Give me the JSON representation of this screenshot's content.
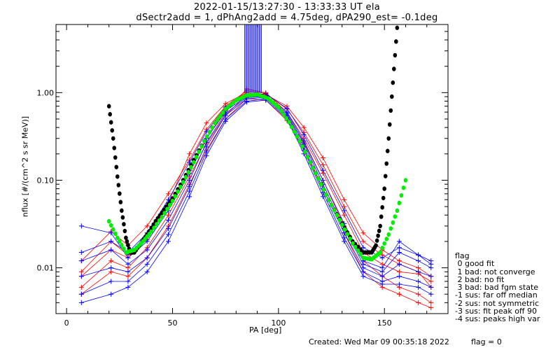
{
  "title_line1": "2022-01-15/13:27:30 - 13:33:33 UT ela",
  "title_line2": "dSectr2add = 1, dPhAng2add = 4.75deg, dPA290_est=  -0.1deg",
  "footer": {
    "created": "Created: Wed Mar 09 00:35:18 2022",
    "flag_value": "flag = 0"
  },
  "legend": {
    "items": [
      "flag",
      " 0 good fit",
      " 1 bad: not converge",
      " 2 bad: no fit",
      " 3 bad: bad fgm state",
      "-1 sus: far off median",
      "-2 sus: not symmetric",
      "-3 sus: fit peak off 90",
      "-4 sus: peaks high var"
    ]
  },
  "colors": {
    "series_red": "#ff0000",
    "series_blue": "#0000ff",
    "fit_green": "#00ee00",
    "fit_black": "#000000"
  },
  "chart_data": {
    "type": "line",
    "xlabel": "PA [deg]",
    "ylabel": "nflux [#/(cm^2 s sr MeV)]",
    "xlim": [
      -5,
      180
    ],
    "ylim": [
      0.003,
      6.0
    ],
    "yscale": "log",
    "x_ticks": [
      0,
      50,
      100,
      150
    ],
    "y_ticks": [
      0.01,
      0.1,
      1.0
    ],
    "y_tick_labels": [
      "0.01",
      "0.10",
      "1.00"
    ],
    "x": [
      7,
      21,
      29,
      38,
      48,
      58,
      66,
      75,
      85,
      94,
      104,
      112,
      121,
      131,
      140,
      149,
      157,
      166,
      172
    ],
    "series": [
      {
        "color": "red",
        "values": [
          0.009,
          0.02,
          0.014,
          0.023,
          0.05,
          0.13,
          0.3,
          0.6,
          1.1,
          1.0,
          0.6,
          0.3,
          0.12,
          0.04,
          0.015,
          0.011,
          0.009,
          0.0085,
          0.007
        ]
      },
      {
        "color": "red",
        "values": [
          0.006,
          0.012,
          0.01,
          0.017,
          0.04,
          0.11,
          0.26,
          0.55,
          0.95,
          0.92,
          0.55,
          0.27,
          0.1,
          0.03,
          0.012,
          0.008,
          0.006,
          0.005,
          0.004
        ]
      },
      {
        "color": "red",
        "values": [
          0.012,
          0.026,
          0.018,
          0.03,
          0.07,
          0.17,
          0.38,
          0.7,
          1.05,
          0.98,
          0.65,
          0.35,
          0.15,
          0.05,
          0.02,
          0.014,
          0.011,
          0.009,
          0.006
        ]
      },
      {
        "color": "red",
        "values": [
          0.005,
          0.009,
          0.008,
          0.013,
          0.03,
          0.09,
          0.22,
          0.5,
          0.85,
          0.82,
          0.48,
          0.22,
          0.08,
          0.025,
          0.009,
          0.006,
          0.005,
          0.004,
          0.0035
        ]
      },
      {
        "color": "red",
        "values": [
          0.008,
          0.016,
          0.013,
          0.021,
          0.055,
          0.2,
          0.45,
          0.75,
          1.0,
          0.95,
          0.7,
          0.4,
          0.18,
          0.06,
          0.025,
          0.016,
          0.012,
          0.01,
          0.008
        ]
      },
      {
        "color": "blue",
        "values": [
          0.03,
          0.025,
          0.013,
          0.02,
          0.045,
          0.12,
          0.3,
          0.62,
          0.9,
          0.92,
          0.6,
          0.28,
          0.1,
          0.032,
          0.012,
          0.01,
          0.02,
          0.014,
          0.012
        ]
      },
      {
        "color": "blue",
        "values": [
          0.012,
          0.016,
          0.011,
          0.016,
          0.035,
          0.1,
          0.27,
          0.58,
          0.88,
          0.9,
          0.58,
          0.26,
          0.09,
          0.028,
          0.011,
          0.009,
          0.015,
          0.012,
          0.01
        ]
      },
      {
        "color": "blue",
        "values": [
          0.008,
          0.01,
          0.009,
          0.013,
          0.028,
          0.085,
          0.24,
          0.55,
          0.85,
          0.88,
          0.55,
          0.24,
          0.08,
          0.025,
          0.01,
          0.008,
          0.011,
          0.009,
          0.008
        ]
      },
      {
        "color": "blue",
        "values": [
          0.005,
          0.007,
          0.007,
          0.011,
          0.024,
          0.075,
          0.21,
          0.5,
          0.8,
          0.85,
          0.52,
          0.22,
          0.072,
          0.022,
          0.009,
          0.007,
          0.008,
          0.007,
          0.006
        ]
      },
      {
        "color": "blue",
        "values": [
          0.004,
          0.005,
          0.006,
          0.009,
          0.02,
          0.065,
          0.19,
          0.47,
          0.78,
          0.82,
          0.5,
          0.2,
          0.065,
          0.02,
          0.008,
          0.0065,
          0.0065,
          0.006,
          0.005
        ]
      },
      {
        "color": "blue",
        "values": [
          0.015,
          0.02,
          0.015,
          0.025,
          0.06,
          0.16,
          0.36,
          0.68,
          0.95,
          0.97,
          0.66,
          0.33,
          0.13,
          0.045,
          0.017,
          0.013,
          0.017,
          0.014,
          0.011
        ]
      }
    ],
    "fit_green": {
      "x": [
        20,
        24,
        28,
        32,
        36,
        40,
        45,
        50,
        55,
        60,
        65,
        70,
        75,
        80,
        85,
        90,
        95,
        100,
        105,
        110,
        115,
        120,
        125,
        130,
        135,
        140,
        144,
        148,
        152,
        156,
        160
      ],
      "values": [
        0.034,
        0.022,
        0.015,
        0.016,
        0.02,
        0.026,
        0.038,
        0.058,
        0.095,
        0.16,
        0.28,
        0.45,
        0.65,
        0.82,
        0.93,
        0.95,
        0.86,
        0.68,
        0.46,
        0.28,
        0.16,
        0.09,
        0.052,
        0.031,
        0.019,
        0.013,
        0.0125,
        0.015,
        0.024,
        0.045,
        0.1
      ]
    },
    "fit_black": {
      "x": [
        20,
        22,
        24,
        26,
        28,
        30,
        32,
        35,
        38,
        42,
        46,
        50,
        55,
        60,
        65,
        70,
        75,
        80,
        85,
        90,
        95,
        100,
        105,
        110,
        115,
        120,
        125,
        130,
        135,
        140,
        144,
        146,
        148,
        150,
        152,
        154,
        156
      ],
      "values": [
        0.7,
        0.3,
        0.11,
        0.045,
        0.022,
        0.015,
        0.015,
        0.019,
        0.024,
        0.034,
        0.046,
        0.062,
        0.1,
        0.17,
        0.28,
        0.45,
        0.65,
        0.82,
        0.93,
        0.95,
        0.86,
        0.68,
        0.46,
        0.28,
        0.16,
        0.09,
        0.052,
        0.032,
        0.02,
        0.015,
        0.015,
        0.018,
        0.03,
        0.08,
        0.3,
        1.3,
        5.5
      ]
    },
    "spike": {
      "x_from": 84,
      "x_to": 92,
      "y_from": 1.0,
      "color": "blue"
    }
  }
}
